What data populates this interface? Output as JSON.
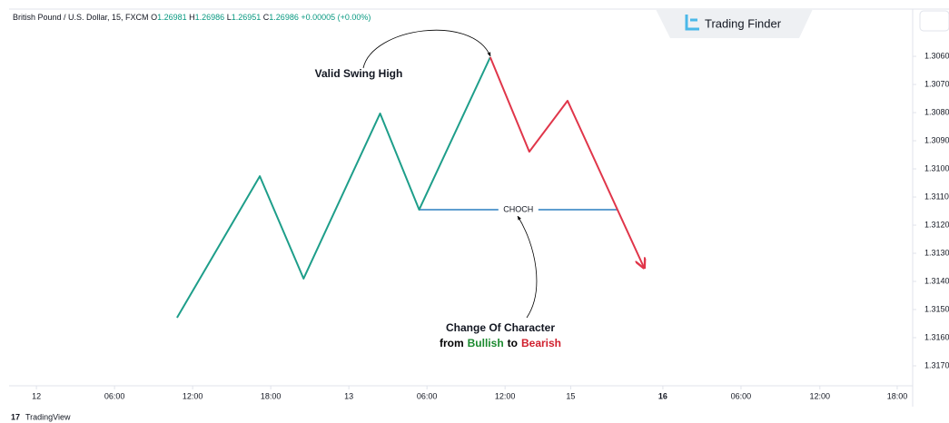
{
  "header": {
    "symbol": "British Pound / U.S. Dollar, 15, FXCM",
    "o": "O",
    "ov": "1.26981",
    "h": "H",
    "hv": "1.26986",
    "l": "L",
    "lv": "1.26951",
    "c": "C",
    "cv": "1.26986",
    "change": "+0.00005 (+0.00%)"
  },
  "logo": "Trading Finder",
  "footer": "TradingView",
  "chart_data": {
    "type": "line",
    "annotations": {
      "swing": "Valid Swing High",
      "choch": "CHOCH",
      "line1": "Change Of Character",
      "from": "from",
      "bullish": "Bullish",
      "to": "to",
      "bearish": "Bearish"
    },
    "series": [
      {
        "color": "#1e9e8a",
        "x": [
          1.8,
          2.86,
          3.42,
          4.4,
          4.9,
          5.81
        ],
        "values": [
          1.31529,
          1.31026,
          1.3139,
          1.30803,
          1.31145,
          1.30603
        ]
      },
      {
        "color": "#e0364a",
        "x": [
          5.81,
          6.31,
          6.8,
          7.78
        ],
        "values": [
          1.30603,
          1.30939,
          1.30758,
          1.31352
        ]
      }
    ],
    "choch_line": {
      "color": "#2a7fc0",
      "x": [
        4.9,
        7.44
      ],
      "values": [
        1.31145,
        1.31145
      ]
    },
    "xlim": [
      -0.35,
      11.16
    ],
    "ylim": [
      1.31771,
      1.30432
    ],
    "xticks": [
      {
        "value": 0,
        "label": "12"
      },
      {
        "value": 1,
        "label": "06:00"
      },
      {
        "value": 2,
        "label": "12:00"
      },
      {
        "value": 3,
        "label": "18:00"
      },
      {
        "value": 4,
        "label": "13"
      },
      {
        "value": 5,
        "label": "06:00"
      },
      {
        "value": 6,
        "label": "12:00"
      },
      {
        "value": 6.84,
        "label": "15"
      },
      {
        "value": 8.02,
        "label": "16"
      },
      {
        "value": 9.02,
        "label": "06:00"
      },
      {
        "value": 10.03,
        "label": "12:00"
      },
      {
        "value": 11.02,
        "label": "18:00"
      }
    ],
    "yticks": [
      {
        "value": 1.306,
        "label": "1.3060"
      },
      {
        "value": 1.307,
        "label": "1.3070"
      },
      {
        "value": 1.308,
        "label": "1.3080"
      },
      {
        "value": 1.309,
        "label": "1.3090"
      },
      {
        "value": 1.31,
        "label": "1.3100"
      },
      {
        "value": 1.311,
        "label": "1.3110"
      },
      {
        "value": 1.312,
        "label": "1.3120"
      },
      {
        "value": 1.313,
        "label": "1.3130"
      },
      {
        "value": 1.314,
        "label": "1.3140"
      },
      {
        "value": 1.315,
        "label": "1.3150"
      },
      {
        "value": 1.316,
        "label": "1.3160"
      },
      {
        "value": 1.317,
        "label": "1.3170"
      }
    ]
  }
}
